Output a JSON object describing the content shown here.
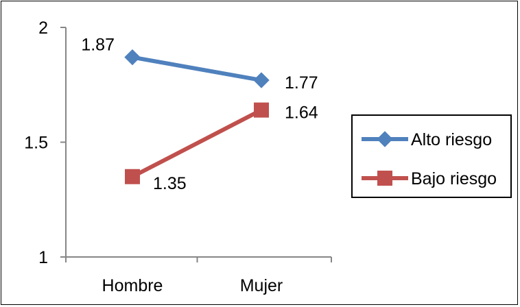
{
  "chart_data": {
    "type": "line",
    "categories": [
      "Hombre",
      "Mujer"
    ],
    "series": [
      {
        "name": "Alto riesgo",
        "values": [
          1.87,
          1.77
        ],
        "color": "#4F81BD",
        "marker": "diamond"
      },
      {
        "name": "Bajo riesgo",
        "values": [
          1.35,
          1.64
        ],
        "color": "#C0504D",
        "marker": "square"
      }
    ],
    "yticks": [
      "1",
      "1.5",
      "2"
    ],
    "ylim": [
      1,
      2
    ],
    "grid": false,
    "legend_position": "right",
    "data_labels": true
  }
}
